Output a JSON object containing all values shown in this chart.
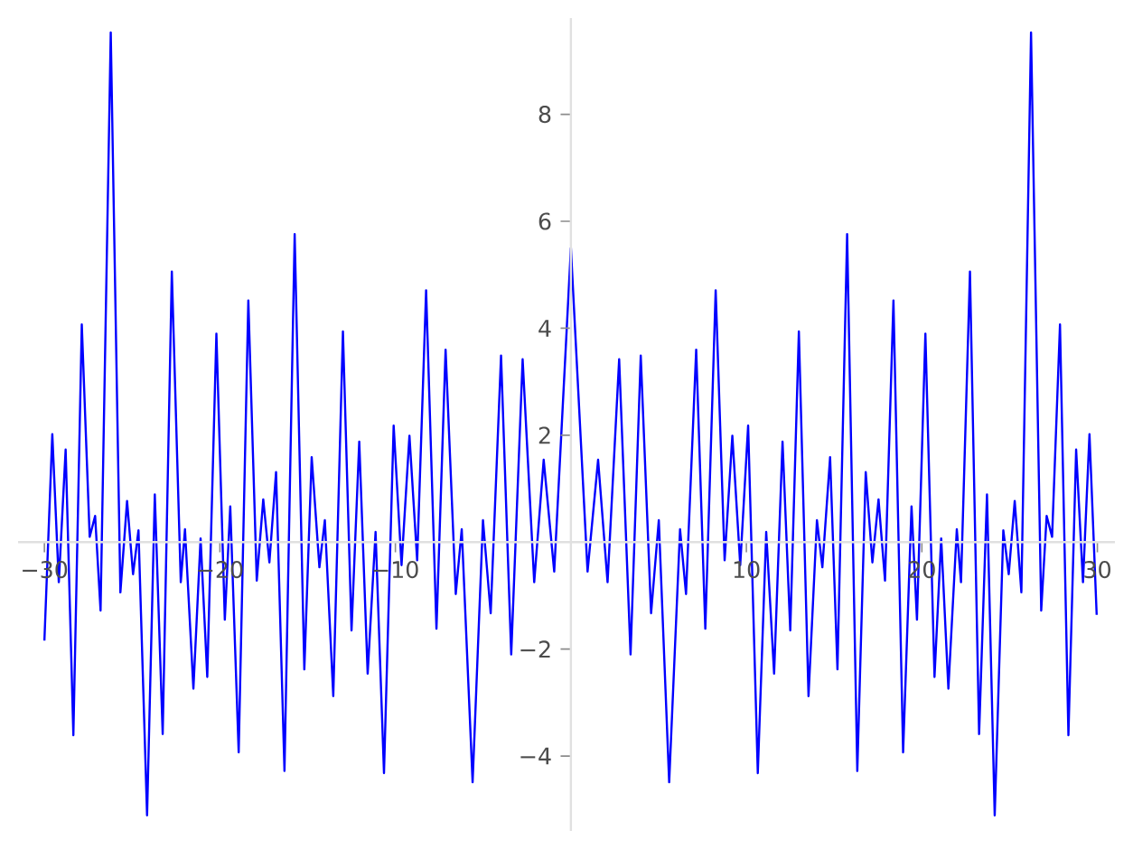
{
  "chart_data": {
    "type": "line",
    "x": [
      -30,
      -29.55,
      -29.18,
      -28.79,
      -28.35,
      -27.87,
      -27.42,
      -27.11,
      -26.8,
      -26.22,
      -25.67,
      -25.29,
      -24.95,
      -24.64,
      -24.15,
      -23.71,
      -23.26,
      -22.74,
      -22.23,
      -21.99,
      -21.51,
      -21.1,
      -20.72,
      -20.2,
      -19.72,
      -19.41,
      -18.93,
      -18.38,
      -17.9,
      -17.53,
      -17.18,
      -16.8,
      -16.32,
      -15.74,
      -15.19,
      -14.77,
      -14.33,
      -14.02,
      -13.54,
      -12.99,
      -12.5,
      -12.06,
      -11.58,
      -11.13,
      -10.65,
      -10.1,
      -9.65,
      -9.2,
      -8.76,
      -8.25,
      -7.66,
      -7.14,
      -6.56,
      -6.22,
      -5.6,
      -5.01,
      -4.57,
      -3.98,
      -3.4,
      -2.75,
      -2.09,
      -1.55,
      -0.95,
      0,
      0.95,
      1.55,
      2.09,
      2.75,
      3.4,
      3.98,
      4.57,
      5.01,
      5.6,
      6.22,
      6.56,
      7.14,
      7.66,
      8.25,
      8.76,
      9.2,
      9.65,
      10.1,
      10.65,
      11.13,
      11.58,
      12.06,
      12.5,
      12.99,
      13.54,
      14.02,
      14.33,
      14.77,
      15.19,
      15.74,
      16.32,
      16.8,
      17.18,
      17.53,
      17.9,
      18.38,
      18.93,
      19.41,
      19.72,
      20.2,
      20.72,
      21.1,
      21.51,
      21.99,
      22.23,
      22.74,
      23.26,
      23.71,
      24.15,
      24.64,
      24.95,
      25.29,
      25.67,
      26.22,
      26.8,
      27.11,
      27.42,
      27.87,
      28.35,
      28.79,
      29.18,
      29.55,
      29.96
    ],
    "series": [
      {
        "color": "#0000ff",
        "values": [
          -1.84,
          2.02,
          -0.75,
          1.73,
          -3.61,
          4.07,
          0.1,
          0.49,
          -1.28,
          9.53,
          -0.94,
          0.77,
          -0.6,
          0.22,
          -5.11,
          0.89,
          -3.59,
          5.06,
          -0.75,
          0.24,
          -2.74,
          0.07,
          -2.52,
          3.9,
          -1.45,
          0.67,
          -3.93,
          4.52,
          -0.72,
          0.8,
          -0.38,
          1.31,
          -4.28,
          5.76,
          -2.38,
          1.59,
          -0.47,
          0.41,
          -2.88,
          3.94,
          -1.65,
          1.88,
          -2.46,
          0.19,
          -4.32,
          2.18,
          -0.43,
          1.99,
          -0.34,
          4.71,
          -1.62,
          3.6,
          -0.97,
          0.24,
          -4.49,
          0.41,
          -1.33,
          3.49,
          -2.1,
          3.42,
          -0.75,
          1.54,
          -0.55,
          5.5,
          -0.55,
          1.54,
          -0.75,
          3.42,
          -2.1,
          3.49,
          -1.33,
          0.41,
          -4.49,
          0.24,
          -0.97,
          3.6,
          -1.62,
          4.71,
          -0.34,
          1.99,
          -0.43,
          2.18,
          -4.32,
          0.19,
          -2.46,
          1.88,
          -1.65,
          3.94,
          -2.88,
          0.41,
          -0.47,
          1.59,
          -2.38,
          5.76,
          -4.28,
          1.31,
          -0.38,
          0.8,
          -0.72,
          4.52,
          -3.93,
          0.67,
          -1.45,
          3.9,
          -2.52,
          0.07,
          -2.74,
          0.24,
          -0.75,
          5.06,
          -3.59,
          0.89,
          -5.11,
          0.22,
          -0.6,
          0.77,
          -0.94,
          9.53,
          -1.28,
          0.49,
          0.1,
          4.07,
          -3.61,
          1.73,
          -0.75,
          2.02,
          -1.36
        ]
      }
    ],
    "xlim": [
      -31.5,
      31
    ],
    "ylim": [
      -5.4,
      9.8
    ],
    "xticks": [
      {
        "value": -30,
        "label": "−30"
      },
      {
        "value": -20,
        "label": "−20"
      },
      {
        "value": -10,
        "label": "−10"
      },
      10,
      20,
      30
    ],
    "yticks": [
      {
        "value": -4,
        "label": "−4"
      },
      {
        "value": -2,
        "label": "−2"
      },
      2,
      4,
      6,
      8
    ]
  }
}
